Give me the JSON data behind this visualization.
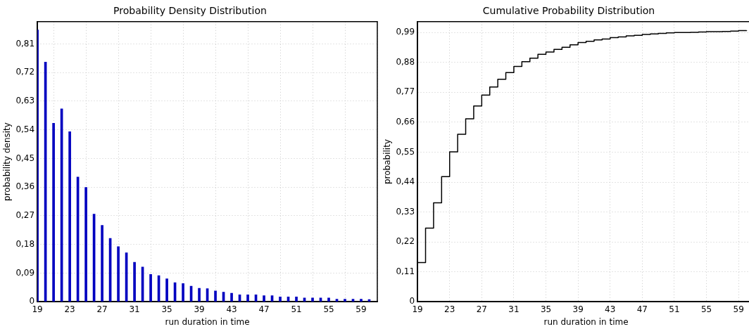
{
  "chart_data": [
    {
      "type": "bar",
      "title": "Probability Density Distribution",
      "xlabel": "run duration in time",
      "ylabel": "probability density",
      "color": "#0000c0",
      "x": [
        19,
        20,
        21,
        22,
        23,
        24,
        25,
        26,
        27,
        28,
        29,
        30,
        31,
        32,
        33,
        34,
        35,
        36,
        37,
        38,
        39,
        40,
        41,
        42,
        43,
        44,
        45,
        46,
        47,
        48,
        49,
        50,
        51,
        52,
        53,
        54,
        55,
        56,
        57,
        58,
        59,
        60
      ],
      "values": [
        0.854,
        0.753,
        0.561,
        0.606,
        0.534,
        0.392,
        0.359,
        0.275,
        0.24,
        0.199,
        0.173,
        0.154,
        0.124,
        0.109,
        0.086,
        0.082,
        0.072,
        0.06,
        0.057,
        0.049,
        0.042,
        0.041,
        0.034,
        0.03,
        0.027,
        0.022,
        0.022,
        0.022,
        0.019,
        0.019,
        0.015,
        0.015,
        0.015,
        0.012,
        0.012,
        0.012,
        0.012,
        0.008,
        0.008,
        0.008,
        0.008,
        0.007
      ],
      "xlim": [
        19,
        61
      ],
      "xticks": [
        19,
        23,
        27,
        31,
        35,
        39,
        43,
        47,
        51,
        55,
        59
      ],
      "ylim": [
        0,
        0.88
      ],
      "yticks": [
        0,
        {
          "value": 0.09,
          "label": "0,09"
        },
        {
          "value": 0.18,
          "label": "0,18"
        },
        {
          "value": 0.27,
          "label": "0,27"
        },
        {
          "value": 0.36,
          "label": "0,36"
        },
        {
          "value": 0.45,
          "label": "0,45"
        },
        {
          "value": 0.54,
          "label": "0,54"
        },
        {
          "value": 0.63,
          "label": "0,63"
        },
        {
          "value": 0.72,
          "label": "0,72"
        },
        {
          "value": 0.81,
          "label": "0,81"
        }
      ],
      "grid": true
    },
    {
      "type": "step",
      "title": "Cumulative Probability Distribution",
      "xlabel": "run duration in time",
      "ylabel": "probability",
      "color": "#000000",
      "x": [
        19,
        19,
        20,
        21,
        22,
        23,
        24,
        25,
        26,
        27,
        28,
        29,
        30,
        31,
        32,
        33,
        34,
        35,
        36,
        37,
        38,
        39,
        40,
        41,
        42,
        43,
        44,
        45,
        46,
        47,
        48,
        49,
        50,
        51,
        52,
        53,
        54,
        55,
        56,
        57,
        58,
        59,
        60
      ],
      "values": [
        0,
        0.144,
        0.271,
        0.364,
        0.46,
        0.551,
        0.616,
        0.673,
        0.72,
        0.76,
        0.79,
        0.818,
        0.843,
        0.865,
        0.883,
        0.896,
        0.91,
        0.918,
        0.928,
        0.936,
        0.945,
        0.953,
        0.958,
        0.963,
        0.966,
        0.971,
        0.974,
        0.978,
        0.98,
        0.983,
        0.985,
        0.987,
        0.989,
        0.99,
        0.99,
        0.991,
        0.992,
        0.993,
        0.993,
        0.994,
        0.995,
        0.997,
        0.998
      ],
      "xlim": [
        19,
        61
      ],
      "xticks": [
        19,
        23,
        27,
        31,
        35,
        39,
        43,
        47,
        51,
        55,
        59
      ],
      "ylim": [
        0,
        1.03
      ],
      "yticks": [
        0,
        {
          "value": 0.11,
          "label": "0,11"
        },
        {
          "value": 0.22,
          "label": "0,22"
        },
        {
          "value": 0.33,
          "label": "0,33"
        },
        {
          "value": 0.44,
          "label": "0,44"
        },
        {
          "value": 0.55,
          "label": "0,55"
        },
        {
          "value": 0.66,
          "label": "0,66"
        },
        {
          "value": 0.77,
          "label": "0,77"
        },
        {
          "value": 0.88,
          "label": "0,88"
        },
        {
          "value": 0.99,
          "label": "0,99"
        }
      ],
      "grid": true
    }
  ]
}
